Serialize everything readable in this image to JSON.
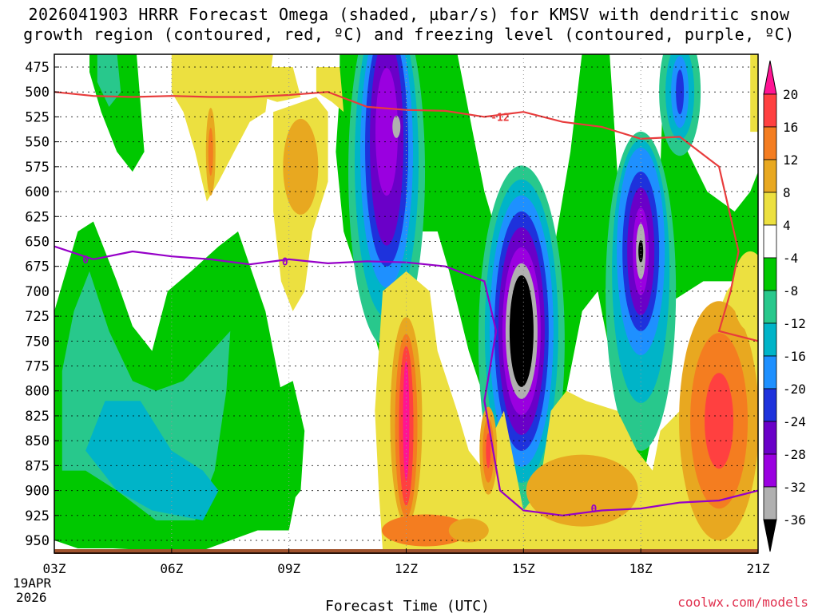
{
  "title": {
    "line1": "2026041903 HRRR Forecast Omega (shaded, µbar/s) for KMSV with dendritic snow",
    "line2": "growth region (contoured, red, ºC) and freezing level (contoured, purple, ºC)"
  },
  "footer": {
    "xlabel": "Forecast Time (UTC)",
    "date_line1": "19APR",
    "date_line2": "2026",
    "credit": "coolwx.com/models"
  },
  "chart_data": {
    "type": "heatmap",
    "title": "2026041903 HRRR Forecast Omega (shaded, µbar/s) for KMSV with dendritic snow growth region (contoured, red, ºC) and freezing level (contoured, purple, ºC)",
    "xlabel": "Forecast Time (UTC)",
    "ylabel": "",
    "x_ticks": [
      "03Z",
      "06Z",
      "09Z",
      "12Z",
      "15Z",
      "18Z",
      "21Z"
    ],
    "x_hours": [
      3,
      6,
      9,
      12,
      15,
      18,
      21
    ],
    "xlim": [
      3,
      21
    ],
    "y_ticks": [
      475,
      500,
      525,
      550,
      575,
      600,
      625,
      650,
      675,
      700,
      725,
      750,
      775,
      800,
      825,
      850,
      875,
      900,
      925,
      950
    ],
    "ylim": [
      963,
      462
    ],
    "colorbar": {
      "labels": [
        "20",
        "16",
        "12",
        "8",
        "4",
        "-4",
        "-8",
        "-12",
        "-16",
        "-20",
        "-24",
        "-28",
        "-32",
        "-36"
      ],
      "colors": [
        "#ff1493",
        "#ff4040",
        "#f47d20",
        "#e8a820",
        "#ece040",
        "#ffffff",
        "#00c800",
        "#28c88c",
        "#00b4c8",
        "#1e90ff",
        "#1e32dc",
        "#6a00c8",
        "#9a00e0",
        "#b0b0b0",
        "#000000"
      ]
    },
    "omega_centers": [
      {
        "name": "descent-12z",
        "hour": 12.0,
        "hpa": 830,
        "value": 20
      },
      {
        "name": "descent-14z",
        "hour": 14.1,
        "hpa": 860,
        "value": 12
      },
      {
        "name": "descent-20z",
        "hour": 20.0,
        "hpa": 840,
        "value": 16
      },
      {
        "name": "descent-08z",
        "hour": 7.0,
        "hpa": 550,
        "value": 8
      },
      {
        "name": "descent-09z",
        "hour": 9.3,
        "hpa": 575,
        "value": 8
      },
      {
        "name": "ascent-11z",
        "hour": 11.5,
        "hpa": 590,
        "value": -30
      },
      {
        "name": "ascent-15z",
        "hour": 15.0,
        "hpa": 740,
        "value": -40
      },
      {
        "name": "ascent-18z",
        "hour": 18.0,
        "hpa": 645,
        "value": -34
      },
      {
        "name": "ascent-19z",
        "hour": 19.0,
        "hpa": 510,
        "value": -24
      },
      {
        "name": "ascent-04z",
        "hour": 4.5,
        "hpa": 830,
        "value": -14
      }
    ],
    "series": [
      {
        "name": "-12",
        "color": "#e83c3c",
        "x": [
          3,
          4,
          5,
          6,
          7,
          8,
          9,
          10,
          11,
          12,
          13,
          14,
          15,
          16,
          17,
          18,
          19,
          20,
          20.5,
          20.3,
          20.0,
          21
        ],
        "y": [
          500,
          504,
          505,
          504,
          505,
          505,
          503,
          500,
          515,
          518,
          519,
          525,
          520,
          530,
          535,
          547,
          545,
          575,
          660,
          700,
          740,
          750
        ]
      },
      {
        "name": "0",
        "color": "#9600c8",
        "x": [
          3,
          4,
          5,
          6,
          7,
          8,
          9,
          10,
          11,
          12,
          13,
          14,
          14.3,
          14.0,
          14.4,
          15,
          16,
          17,
          18,
          19,
          20,
          21
        ],
        "y": [
          655,
          668,
          660,
          665,
          668,
          673,
          668,
          672,
          670,
          671,
          675,
          690,
          740,
          810,
          900,
          920,
          925,
          920,
          918,
          912,
          910,
          900
        ]
      }
    ],
    "grid": true
  }
}
